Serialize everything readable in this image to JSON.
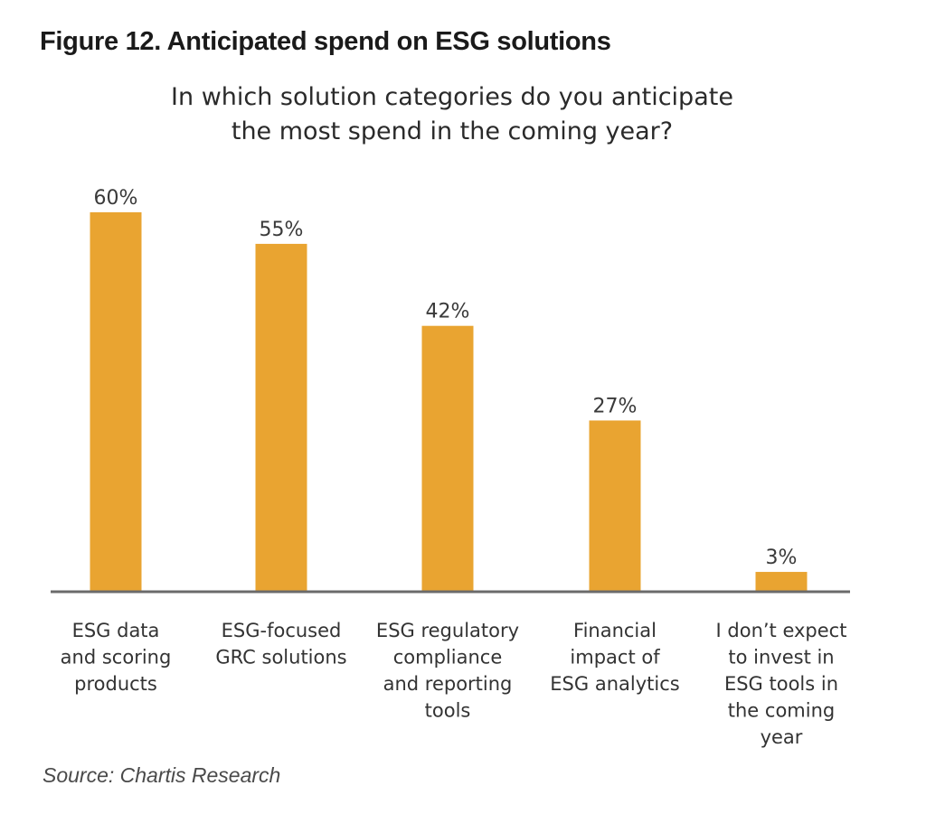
{
  "figure": {
    "title": "Figure 12. Anticipated spend on ESG solutions",
    "subtitle_lines": [
      "In which solution categories do you anticipate",
      "the most spend in the coming year?"
    ],
    "source": "Source: Chartis Research"
  },
  "chart_data": {
    "type": "bar",
    "title": "Figure 12. Anticipated spend on ESG solutions",
    "subtitle": "In which solution categories do you anticipate the most spend in the coming year?",
    "categories": [
      "ESG data and scoring products",
      "ESG-focused GRC solutions",
      "ESG regulatory compliance and reporting tools",
      "Financial impact of ESG analytics",
      "I don’t expect to invest in ESG tools in the coming year"
    ],
    "category_label_lines": [
      [
        "ESG data",
        "and scoring",
        "products"
      ],
      [
        "ESG-focused",
        "GRC solutions"
      ],
      [
        "ESG regulatory",
        "compliance",
        "and reporting",
        "tools"
      ],
      [
        "Financial",
        "impact of",
        "ESG analytics"
      ],
      [
        "I don’t expect",
        "to invest in",
        "ESG tools in",
        "the coming",
        "year"
      ]
    ],
    "values": [
      60,
      55,
      42,
      27,
      3
    ],
    "data_labels": [
      "60%",
      "55%",
      "42%",
      "27%",
      "3%"
    ],
    "unit": "%",
    "xlabel": "",
    "ylabel": "",
    "ylim": [
      0,
      60
    ],
    "grid": false,
    "legend": "none",
    "bar_color": "#E9A431",
    "axis_color": "#6b6b6b",
    "source": "Source: Chartis Research"
  }
}
